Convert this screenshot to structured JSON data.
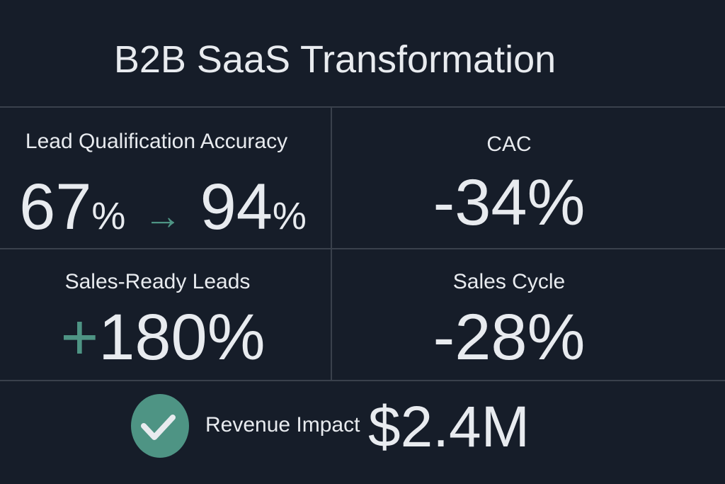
{
  "title": "B2B SaaS Transformation",
  "metrics": [
    {
      "label": "Lead Qualification Accuracy",
      "from": "67",
      "to": "94",
      "unit": "%",
      "arrow": "→"
    },
    {
      "label": "CAC",
      "value": "-34%"
    },
    {
      "label": "Sales-Ready Leads",
      "sign": "+",
      "value": "180%"
    },
    {
      "label": "Sales Cycle",
      "value": "-28%"
    }
  ],
  "revenue": {
    "label": "Revenue Impact",
    "value": "$2.4M",
    "icon": "check-circle-icon"
  },
  "colors": {
    "background": "#161d29",
    "accent": "#4e9484",
    "divider": "#3a414c",
    "text": "#e8ebef"
  }
}
